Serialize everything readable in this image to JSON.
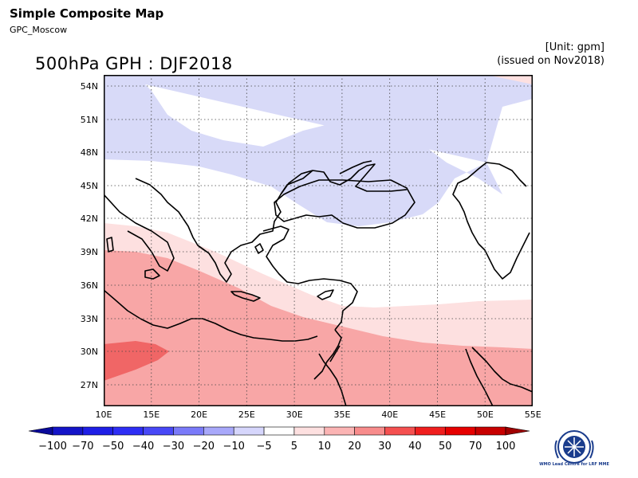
{
  "header": {
    "title": "Simple Composite Map",
    "subtitle": "GPC_Moscow"
  },
  "map": {
    "title": "500hPa GPH : DJF2018",
    "unit": "[Unit: gpm]",
    "issued": "(issued on Nov2018)",
    "lat_labels": [
      "54N",
      "51N",
      "48N",
      "45N",
      "42N",
      "39N",
      "36N",
      "33N",
      "30N",
      "27N"
    ],
    "lon_labels": [
      "10E",
      "15E",
      "20E",
      "25E",
      "30E",
      "35E",
      "40E",
      "45E",
      "50E",
      "55E"
    ],
    "extent": {
      "lon": [
        10,
        55
      ],
      "lat": [
        25,
        55
      ]
    }
  },
  "colorbar": {
    "labels": [
      "−100",
      "−70",
      "−50",
      "−40",
      "−30",
      "−20",
      "−10",
      "−5",
      "5",
      "10",
      "20",
      "30",
      "40",
      "50",
      "70",
      "100"
    ],
    "colors": [
      "#0a0a9a",
      "#1414c8",
      "#1e1ee6",
      "#2d2df5",
      "#4848f7",
      "#7a7af9",
      "#a8a8fa",
      "#d6d6fc",
      "#ffffff",
      "#fde0e0",
      "#fbb4b4",
      "#f88c8c",
      "#f55050",
      "#f01e1e",
      "#e60000",
      "#c80000",
      "#a00000"
    ]
  },
  "colors": {
    "negative_band": "#d8daf8",
    "positive_light": "#fde0e0",
    "positive_mid": "#f8a6a6",
    "positive_strong": "#f06666"
  },
  "logo": {
    "text": "WMO Lead Centre for LRF MME"
  }
}
